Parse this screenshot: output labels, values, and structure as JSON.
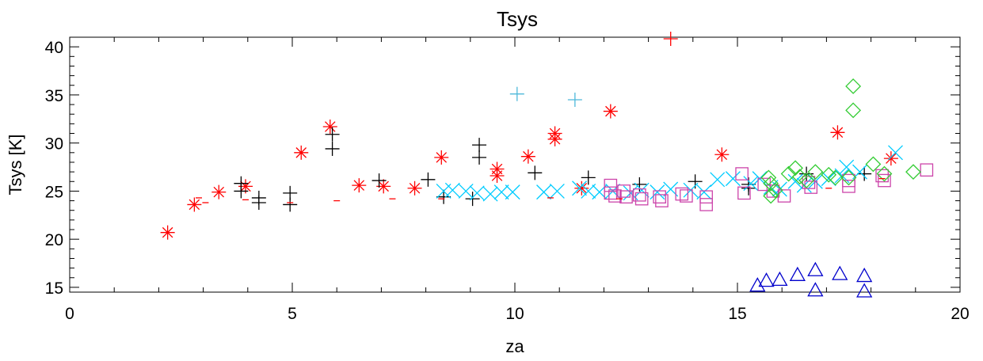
{
  "chart_data": {
    "type": "scatter",
    "title": "Tsys",
    "xlabel": "za",
    "ylabel": "Tsys [K]",
    "xlim": [
      0,
      20
    ],
    "ylim": [
      14.5,
      41
    ],
    "x_ticks": [
      "0",
      "5",
      "10",
      "15",
      "20"
    ],
    "y_ticks": [
      "15",
      "20",
      "25",
      "30",
      "35",
      "40"
    ],
    "grid": false,
    "legend": "none",
    "series": [
      {
        "marker": "asterisk",
        "color": "#ff0000",
        "points": [
          [
            2.2,
            20.7
          ],
          [
            2.8,
            23.6
          ],
          [
            3.35,
            24.9
          ],
          [
            3.95,
            25.5
          ],
          [
            5.2,
            29.0
          ],
          [
            5.85,
            31.7
          ],
          [
            6.5,
            25.6
          ],
          [
            7.05,
            25.5
          ],
          [
            7.75,
            25.3
          ],
          [
            8.35,
            28.5
          ],
          [
            9.6,
            27.3
          ],
          [
            9.6,
            26.6
          ],
          [
            10.3,
            28.6
          ],
          [
            10.9,
            31.0
          ],
          [
            10.9,
            30.4
          ],
          [
            11.5,
            25.3
          ],
          [
            12.15,
            33.3
          ],
          [
            14.65,
            28.8
          ],
          [
            17.25,
            31.1
          ],
          [
            18.45,
            28.4
          ]
        ]
      },
      {
        "marker": "plus",
        "color": "#000000",
        "points": [
          [
            3.85,
            25.8
          ],
          [
            3.85,
            25.0
          ],
          [
            4.25,
            24.3
          ],
          [
            4.25,
            23.8
          ],
          [
            4.95,
            24.8
          ],
          [
            4.95,
            23.6
          ],
          [
            5.9,
            30.9
          ],
          [
            5.9,
            29.4
          ],
          [
            6.95,
            26.1
          ],
          [
            8.05,
            26.2
          ],
          [
            8.4,
            24.4
          ],
          [
            9.05,
            24.2
          ],
          [
            9.2,
            29.8
          ],
          [
            9.2,
            28.5
          ],
          [
            10.45,
            26.9
          ],
          [
            11.65,
            26.4
          ],
          [
            12.8,
            25.7
          ],
          [
            14.05,
            26.0
          ],
          [
            15.25,
            25.7
          ],
          [
            15.25,
            25.3
          ],
          [
            16.55,
            26.8
          ],
          [
            17.85,
            26.8
          ]
        ]
      },
      {
        "marker": "plus",
        "color": "#4db8d9",
        "points": [
          [
            10.05,
            35.1
          ],
          [
            11.35,
            34.5
          ]
        ]
      },
      {
        "marker": "cross",
        "color": "#00ccff",
        "points": [
          [
            8.4,
            25.0
          ],
          [
            8.6,
            25.1
          ],
          [
            8.9,
            25.0
          ],
          [
            9.15,
            24.8
          ],
          [
            9.45,
            24.7
          ],
          [
            9.7,
            24.9
          ],
          [
            9.95,
            24.9
          ],
          [
            10.65,
            24.9
          ],
          [
            10.95,
            25.0
          ],
          [
            11.45,
            25.3
          ],
          [
            11.65,
            25.0
          ],
          [
            11.9,
            24.9
          ],
          [
            12.2,
            25.0
          ],
          [
            12.6,
            24.8
          ],
          [
            12.85,
            25.1
          ],
          [
            13.2,
            24.9
          ],
          [
            13.5,
            25.2
          ],
          [
            13.95,
            25.1
          ],
          [
            14.25,
            24.9
          ],
          [
            14.55,
            26.2
          ],
          [
            14.9,
            26.3
          ],
          [
            15.3,
            25.8
          ],
          [
            15.5,
            26.3
          ],
          [
            15.75,
            25.4
          ],
          [
            15.95,
            25.2
          ],
          [
            16.3,
            26.0
          ],
          [
            16.5,
            25.6
          ],
          [
            16.75,
            26.0
          ],
          [
            17.05,
            26.3
          ],
          [
            17.35,
            26.6
          ],
          [
            17.45,
            27.5
          ],
          [
            17.75,
            27.0
          ],
          [
            18.55,
            29.0
          ]
        ]
      },
      {
        "marker": "square",
        "color": "#cc44aa",
        "points": [
          [
            12.15,
            25.6
          ],
          [
            12.15,
            24.8
          ],
          [
            12.25,
            24.5
          ],
          [
            12.45,
            25.0
          ],
          [
            12.5,
            24.4
          ],
          [
            12.8,
            24.6
          ],
          [
            12.85,
            24.2
          ],
          [
            13.25,
            24.4
          ],
          [
            13.3,
            24.0
          ],
          [
            13.75,
            24.7
          ],
          [
            13.85,
            24.5
          ],
          [
            14.3,
            24.4
          ],
          [
            14.3,
            23.6
          ],
          [
            15.1,
            26.8
          ],
          [
            15.15,
            24.8
          ],
          [
            16.05,
            24.5
          ],
          [
            15.6,
            25.7
          ],
          [
            15.8,
            25.0
          ],
          [
            16.6,
            25.9
          ],
          [
            16.65,
            25.4
          ],
          [
            17.5,
            26.1
          ],
          [
            17.5,
            25.5
          ],
          [
            18.25,
            26.6
          ],
          [
            18.3,
            26.1
          ],
          [
            19.25,
            27.2
          ]
        ]
      },
      {
        "marker": "diamond",
        "color": "#33cc33",
        "points": [
          [
            15.7,
            26.4
          ],
          [
            15.75,
            25.8
          ],
          [
            15.75,
            24.5
          ],
          [
            15.85,
            25.1
          ],
          [
            16.15,
            26.8
          ],
          [
            16.3,
            27.4
          ],
          [
            16.4,
            26.5
          ],
          [
            16.55,
            26.1
          ],
          [
            16.75,
            27.0
          ],
          [
            17.05,
            26.7
          ],
          [
            17.2,
            26.4
          ],
          [
            17.5,
            26.4
          ],
          [
            17.6,
            35.9
          ],
          [
            17.6,
            33.4
          ],
          [
            18.05,
            27.8
          ],
          [
            18.3,
            26.8
          ],
          [
            18.95,
            27.0
          ]
        ]
      },
      {
        "marker": "triangle",
        "color": "#0000cc",
        "points": [
          [
            15.45,
            15.2
          ],
          [
            15.65,
            15.7
          ],
          [
            15.95,
            15.8
          ],
          [
            16.35,
            16.3
          ],
          [
            16.75,
            16.8
          ],
          [
            17.3,
            16.4
          ],
          [
            17.85,
            16.2
          ],
          [
            16.75,
            14.7
          ],
          [
            17.85,
            14.6
          ]
        ]
      },
      {
        "marker": "dash",
        "color": "#ff0000",
        "points": [
          [
            2.9,
            24.3
          ],
          [
            3.05,
            23.8
          ],
          [
            3.95,
            24.1
          ],
          [
            4.95,
            23.8
          ],
          [
            6.0,
            24.0
          ],
          [
            7.25,
            24.2
          ],
          [
            8.35,
            24.2
          ],
          [
            10.8,
            24.3
          ],
          [
            12.35,
            24.2
          ],
          [
            17.05,
            25.3
          ],
          [
            18.25,
            26.3
          ]
        ]
      },
      {
        "marker": "plus",
        "color": "#ff0000",
        "points": [
          [
            13.5,
            41.2
          ]
        ]
      }
    ]
  }
}
